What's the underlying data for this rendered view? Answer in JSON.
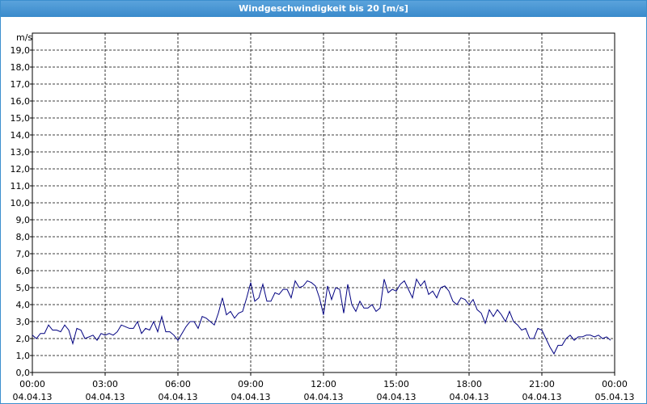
{
  "chart_data": {
    "type": "line",
    "title": "Windgeschwindigkeit bis 20 [m/s]",
    "y_label": "m/s",
    "xlim": [
      0,
      1440
    ],
    "xticks": [
      {
        "value": 0,
        "label": "00:00"
      },
      {
        "value": 180,
        "label": "03:00"
      },
      {
        "value": 360,
        "label": "06:00"
      },
      {
        "value": 540,
        "label": "09:00"
      },
      {
        "value": 720,
        "label": "12:00"
      },
      {
        "value": 900,
        "label": "15:00"
      },
      {
        "value": 1080,
        "label": "18:00"
      },
      {
        "value": 1260,
        "label": "21:00"
      },
      {
        "value": 1440,
        "label": "00:00"
      }
    ],
    "xtick_dates": [
      "04.04.13",
      "04.04.13",
      "04.04.13",
      "04.04.13",
      "04.04.13",
      "04.04.13",
      "04.04.13",
      "04.04.13",
      "05.04.13"
    ],
    "ylim": [
      0,
      20
    ],
    "yticks": [
      {
        "value": 0,
        "label": "0,0"
      },
      {
        "value": 1,
        "label": "1,0"
      },
      {
        "value": 2,
        "label": "2,0"
      },
      {
        "value": 3,
        "label": "3,0"
      },
      {
        "value": 4,
        "label": "4,0"
      },
      {
        "value": 5,
        "label": "5,0"
      },
      {
        "value": 6,
        "label": "6,0"
      },
      {
        "value": 7,
        "label": "7,0"
      },
      {
        "value": 8,
        "label": "8,0"
      },
      {
        "value": 9,
        "label": "9,0"
      },
      {
        "value": 10,
        "label": "10,0"
      },
      {
        "value": 11,
        "label": "11,0"
      },
      {
        "value": 12,
        "label": "12,0"
      },
      {
        "value": 13,
        "label": "13,0"
      },
      {
        "value": 14,
        "label": "14,0"
      },
      {
        "value": 15,
        "label": "15,0"
      },
      {
        "value": 16,
        "label": "16,0"
      },
      {
        "value": 17,
        "label": "17,0"
      },
      {
        "value": 18,
        "label": "18,0"
      },
      {
        "value": 19,
        "label": "19,0"
      }
    ],
    "grid": true,
    "x": [
      0,
      10,
      20,
      30,
      40,
      50,
      60,
      70,
      80,
      90,
      100,
      110,
      120,
      130,
      140,
      150,
      160,
      170,
      180,
      190,
      200,
      210,
      220,
      230,
      240,
      250,
      260,
      270,
      280,
      290,
      300,
      310,
      320,
      330,
      340,
      350,
      360,
      370,
      380,
      390,
      400,
      410,
      420,
      430,
      440,
      450,
      460,
      470,
      480,
      490,
      500,
      510,
      520,
      530,
      540,
      550,
      560,
      570,
      580,
      590,
      600,
      610,
      620,
      630,
      640,
      650,
      660,
      670,
      680,
      690,
      700,
      710,
      720,
      730,
      740,
      750,
      760,
      770,
      780,
      790,
      800,
      810,
      820,
      830,
      840,
      850,
      860,
      870,
      880,
      890,
      900,
      910,
      920,
      930,
      940,
      950,
      960,
      970,
      980,
      990,
      1000,
      1010,
      1020,
      1030,
      1040,
      1050,
      1060,
      1070,
      1080,
      1090,
      1100,
      1110,
      1120,
      1130,
      1140,
      1150,
      1160,
      1170,
      1180,
      1190,
      1200,
      1210,
      1220,
      1230,
      1240,
      1250,
      1260,
      1270,
      1280,
      1290,
      1300,
      1310,
      1320,
      1330,
      1340,
      1350,
      1360,
      1370,
      1380,
      1390,
      1400,
      1410,
      1420,
      1430
    ],
    "series": [
      {
        "color": "#000080",
        "values": [
          2.2,
          2.0,
          2.3,
          2.3,
          2.8,
          2.5,
          2.5,
          2.4,
          2.8,
          2.5,
          1.7,
          2.6,
          2.5,
          2.0,
          2.1,
          2.2,
          1.9,
          2.3,
          2.2,
          2.3,
          2.2,
          2.4,
          2.8,
          2.7,
          2.6,
          2.6,
          3.0,
          2.3,
          2.6,
          2.5,
          3.0,
          2.4,
          3.3,
          2.4,
          2.4,
          2.2,
          1.9,
          2.3,
          2.7,
          3.0,
          3.0,
          2.6,
          3.3,
          3.2,
          3.0,
          2.8,
          3.5,
          4.4,
          3.4,
          3.6,
          3.2,
          3.5,
          3.6,
          4.4,
          5.3,
          4.2,
          4.4,
          5.2,
          4.2,
          4.2,
          4.7,
          4.6,
          4.9,
          4.9,
          4.4,
          5.4,
          5.0,
          5.1,
          5.4,
          5.3,
          5.1,
          4.4,
          3.4,
          5.1,
          4.3,
          5.0,
          4.9,
          3.5,
          5.2,
          4.0,
          3.6,
          4.2,
          3.8,
          3.8,
          4.0,
          3.6,
          3.8,
          5.5,
          4.7,
          4.9,
          4.8,
          5.2,
          5.4,
          4.9,
          4.4,
          5.5,
          5.1,
          5.4,
          4.6,
          4.8,
          4.4,
          5.0,
          5.1,
          4.8,
          4.2,
          4.0,
          4.4,
          4.3,
          4.0,
          4.3,
          3.7,
          3.5,
          2.9,
          3.7,
          3.3,
          3.7,
          3.4,
          3.0,
          3.6,
          3.0,
          2.8,
          2.5,
          2.6,
          2.0,
          2.0,
          2.6,
          2.5,
          2.0,
          1.5,
          1.1,
          1.6,
          1.6,
          2.0,
          2.2,
          1.9,
          2.1,
          2.1,
          2.2,
          2.2,
          2.1,
          2.2,
          2.0,
          2.1,
          1.9
        ]
      }
    ]
  }
}
